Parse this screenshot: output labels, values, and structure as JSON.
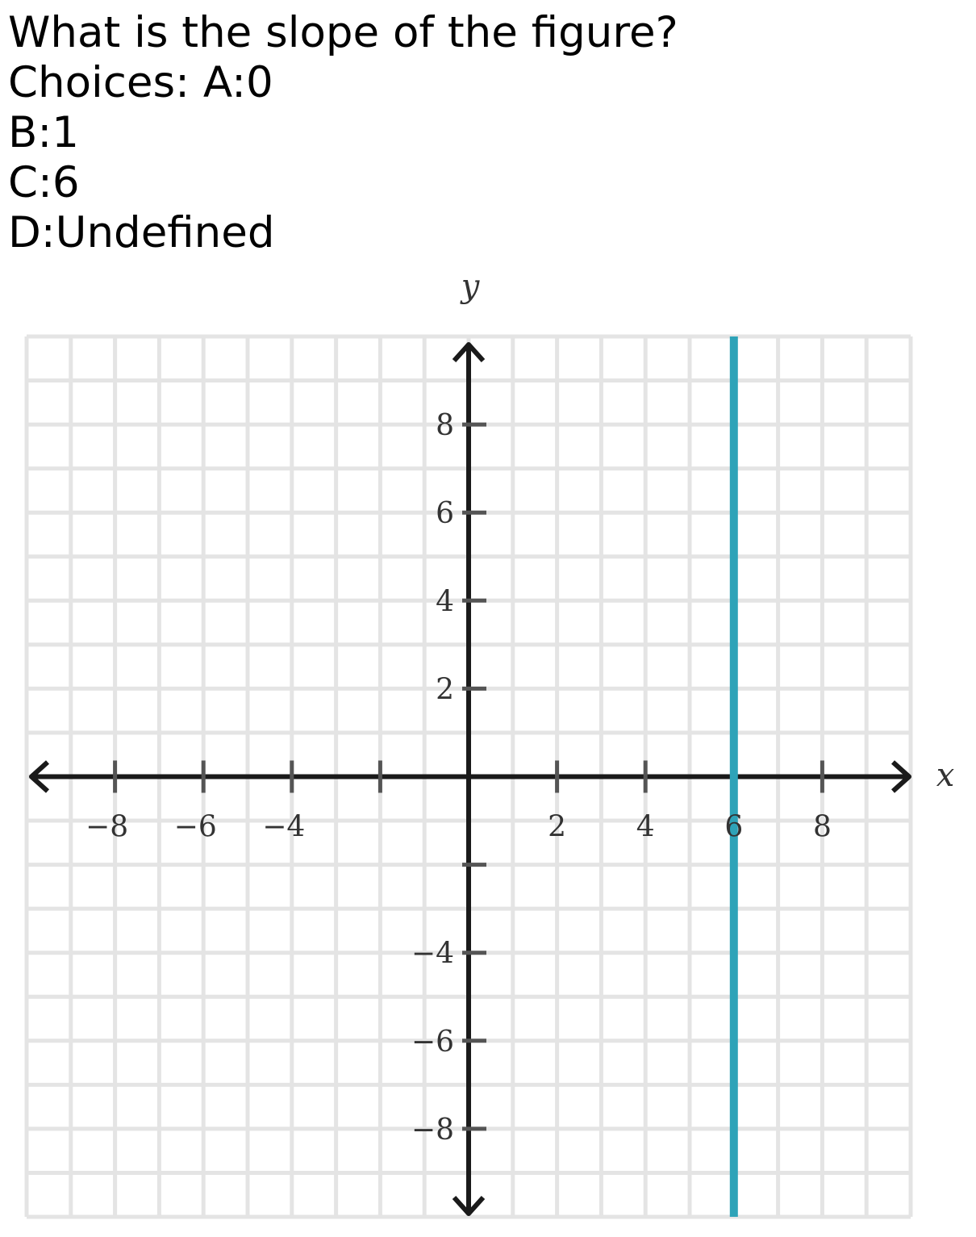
{
  "question": {
    "text": "What is the slope of the figure?",
    "choices": [
      "Choices: A:0",
      "B:1",
      "C:6",
      "D:Undefined"
    ]
  },
  "chart_data": {
    "type": "line",
    "xlabel": "x",
    "ylabel": "y",
    "xlim": [
      -10,
      10
    ],
    "ylim": [
      -10,
      10
    ],
    "grid": true,
    "grid_step": 1,
    "x_ticks": [
      -8,
      -6,
      -4,
      -2,
      2,
      4,
      6,
      8
    ],
    "y_ticks": [
      -8,
      -6,
      -4,
      -2,
      2,
      4,
      6,
      8
    ],
    "x_tick_labels": [
      {
        "value": -8,
        "label": "−8"
      },
      {
        "value": -6,
        "label": "−6"
      },
      {
        "value": -4,
        "label": "−4"
      },
      {
        "value": 2,
        "label": "2"
      },
      {
        "value": 4,
        "label": "4"
      },
      {
        "value": 6,
        "label": "6"
      },
      {
        "value": 8,
        "label": "8"
      }
    ],
    "y_tick_labels": [
      {
        "value": 8,
        "label": "8"
      },
      {
        "value": 6,
        "label": "6"
      },
      {
        "value": 4,
        "label": "4"
      },
      {
        "value": 2,
        "label": "2"
      },
      {
        "value": -4,
        "label": "−4"
      },
      {
        "value": -6,
        "label": "−6"
      },
      {
        "value": -8,
        "label": "−8"
      }
    ],
    "series": [
      {
        "x": [
          6,
          6
        ],
        "y": [
          -10,
          10
        ],
        "color": "#2ea3b8"
      }
    ],
    "colors": {
      "grid": "#e4e4e4",
      "axis": "#1a1a1a"
    }
  }
}
